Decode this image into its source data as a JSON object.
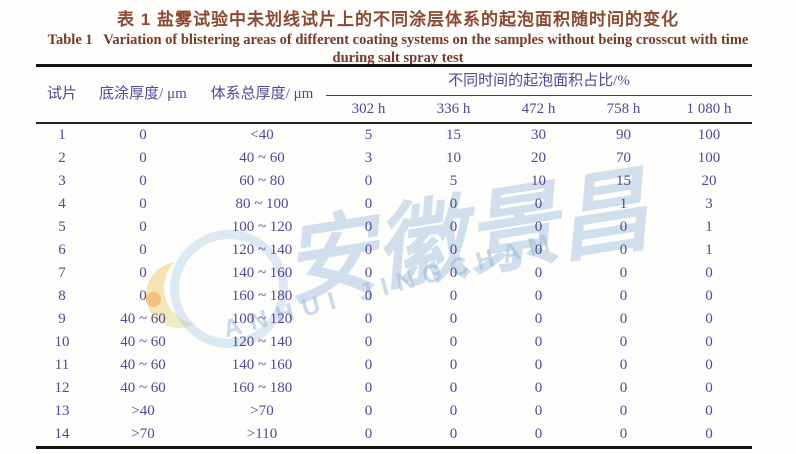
{
  "page": {
    "title_zh": "表 1   盐雾试验中未划线试片上的不同涂层体系的起泡面积随时间的变化",
    "title_en_line1": "Table 1   Variation of blistering areas of different coating systems on the samples without being crosscut with time",
    "title_en_line2": "during salt spray test"
  },
  "colors": {
    "title_zh": "#8a4a33",
    "title_en": "#77392a",
    "table_text": "#554793",
    "rule": "#121212",
    "watermark_blue": "#92b5d3",
    "watermark_yellow": "#f6c864"
  },
  "table": {
    "headers": {
      "col_sample": "试片",
      "col_primer": "底涂厚度/ μm",
      "col_total": "体系总厚度/ μm",
      "group_time": "不同时间的起泡面积占比/%",
      "time_cols": [
        "302 h",
        "336 h",
        "472 h",
        "758 h",
        "1 080 h"
      ]
    },
    "rows": [
      [
        "1",
        "0",
        "<40",
        "5",
        "15",
        "30",
        "90",
        "100"
      ],
      [
        "2",
        "0",
        "40 ~ 60",
        "3",
        "10",
        "20",
        "70",
        "100"
      ],
      [
        "3",
        "0",
        "60 ~ 80",
        "0",
        "5",
        "10",
        "15",
        "20"
      ],
      [
        "4",
        "0",
        "80 ~ 100",
        "0",
        "0",
        "0",
        "1",
        "3"
      ],
      [
        "5",
        "0",
        "100 ~ 120",
        "0",
        "0",
        "0",
        "0",
        "1"
      ],
      [
        "6",
        "0",
        "120 ~ 140",
        "0",
        "0",
        "0",
        "0",
        "1"
      ],
      [
        "7",
        "0",
        "140 ~ 160",
        "0",
        "0",
        "0",
        "0",
        "0"
      ],
      [
        "8",
        "0",
        "160 ~ 180",
        "0",
        "0",
        "0",
        "0",
        "0"
      ],
      [
        "9",
        "40 ~ 60",
        "100 ~ 120",
        "0",
        "0",
        "0",
        "0",
        "0"
      ],
      [
        "10",
        "40 ~ 60",
        "120 ~ 140",
        "0",
        "0",
        "0",
        "0",
        "0"
      ],
      [
        "11",
        "40 ~ 60",
        "140 ~ 160",
        "0",
        "0",
        "0",
        "0",
        "0"
      ],
      [
        "12",
        "40 ~ 60",
        "160 ~ 180",
        "0",
        "0",
        "0",
        "0",
        "0"
      ],
      [
        "13",
        ">40",
        ">70",
        "0",
        "0",
        "0",
        "0",
        "0"
      ],
      [
        "14",
        ">70",
        ">110",
        "0",
        "0",
        "0",
        "0",
        "0"
      ]
    ]
  },
  "watermark": {
    "chinese": "安徽景昌",
    "arc_text": "ANHUI JINGCHAM"
  }
}
